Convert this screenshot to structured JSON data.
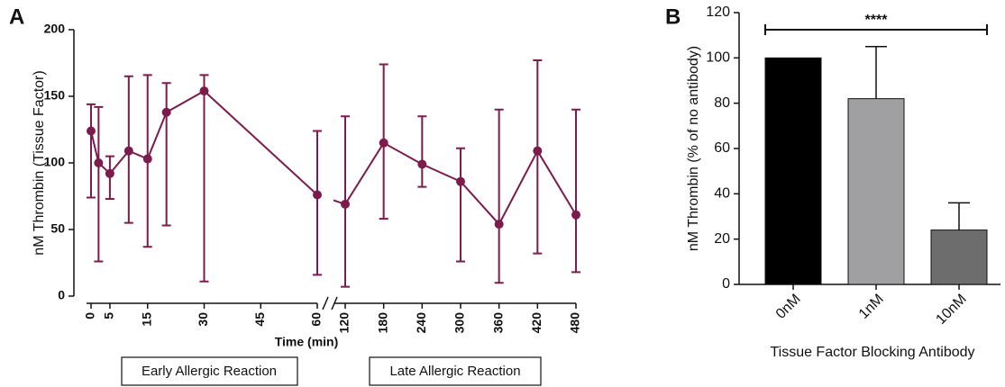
{
  "chart_data": [
    {
      "type": "line",
      "panel_label": "A",
      "y_label": "nM Thrombin (Tissue Factor)",
      "x_label": "Time (min)",
      "annotations": [
        "Early Allergic Reaction",
        "Late Allergic Reaction"
      ],
      "x": [
        0,
        2,
        5,
        10,
        15,
        20,
        30,
        60,
        120,
        180,
        240,
        300,
        360,
        420,
        480
      ],
      "series": [
        {
          "color": "#7b1c4c",
          "values": [
            124,
            100,
            92,
            109,
            103,
            138,
            154,
            76,
            69,
            115,
            99,
            86,
            54,
            109,
            61
          ],
          "upper": [
            144,
            142,
            105,
            165,
            166,
            160,
            166,
            124,
            135,
            174,
            135,
            111,
            140,
            177,
            140
          ],
          "lower": [
            74,
            26,
            73,
            55,
            37,
            53,
            11,
            16,
            7,
            58,
            82,
            26,
            10,
            32,
            18
          ]
        }
      ],
      "xlim": [
        0,
        480
      ],
      "xbreak": [
        60,
        120
      ],
      "xticks": [
        0,
        5,
        15,
        30,
        45,
        60,
        120,
        180,
        240,
        300,
        360,
        420,
        480
      ],
      "ylim": [
        0,
        200
      ],
      "yticks": [
        0,
        50,
        100,
        150,
        200
      ]
    },
    {
      "type": "bar",
      "panel_label": "B",
      "y_label": "nM Thrombin (% of no antibody)",
      "x_label": "Tissue Factor Blocking Antibody",
      "categories": [
        "0nM",
        "1nM",
        "10nM"
      ],
      "values": [
        100,
        82,
        24
      ],
      "errors": [
        0,
        23,
        12
      ],
      "colors": [
        "#000000",
        "#a0a0a2",
        "#6d6d6d"
      ],
      "significance": {
        "from": 0,
        "to": 2,
        "label": "****"
      },
      "ylim": [
        0,
        120
      ],
      "yticks": [
        0,
        20,
        40,
        60,
        80,
        100,
        120
      ]
    }
  ]
}
